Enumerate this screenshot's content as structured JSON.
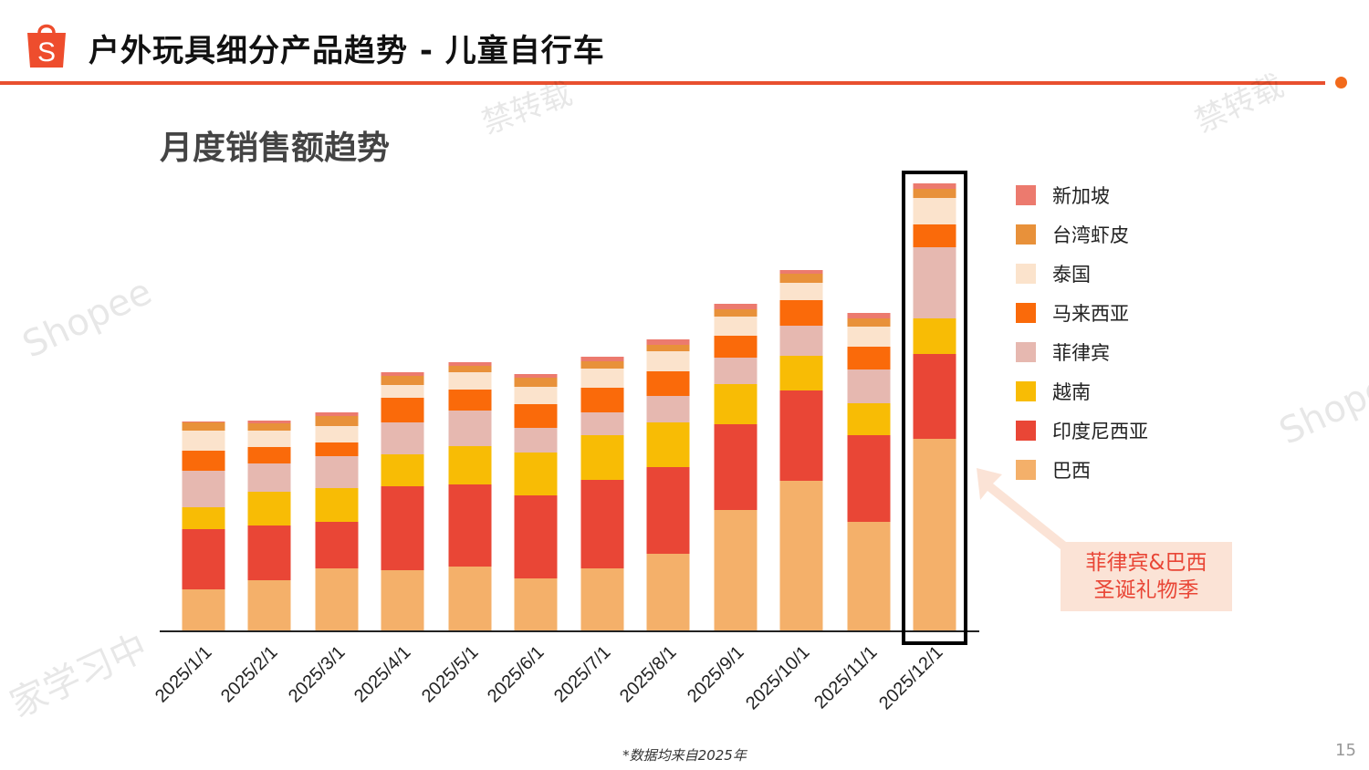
{
  "header": {
    "title": "户外玩具细分产品趋势 - 儿童自行车",
    "logo_letter": "S",
    "accent_color": "#e8502f"
  },
  "subtitle": "月度销售额趋势",
  "annotation": {
    "line1": "菲律宾&巴西",
    "line2": "圣诞礼物季"
  },
  "footnote": "*数据均来自2025年",
  "page_number": "15",
  "watermarks": [
    "Shopee",
    "Shopee",
    "家学习中",
    "禁转载",
    "禁转载"
  ],
  "chart_data": {
    "type": "bar",
    "stacked": true,
    "title": "月度销售额趋势",
    "xlabel": "",
    "ylabel": "",
    "y_axis_shown": false,
    "value_note": "relative",
    "grid": false,
    "legend_position": "right",
    "highlighted_category": "2025/12/1",
    "categories": [
      "2025/1/1",
      "2025/2/1",
      "2025/3/1",
      "2025/4/1",
      "2025/5/1",
      "2025/6/1",
      "2025/7/1",
      "2025/8/1",
      "2025/9/1",
      "2025/10/1",
      "2025/11/1",
      "2025/12/1"
    ],
    "series": [
      {
        "name": "新加坡",
        "color": "#ec7a6e",
        "values": [
          1,
          3,
          4,
          4,
          4,
          4,
          5,
          6,
          6,
          4,
          6,
          6
        ]
      },
      {
        "name": "台湾虾皮",
        "color": "#e8913a",
        "values": [
          9,
          8,
          11,
          10,
          7,
          10,
          8,
          7,
          8,
          10,
          9,
          10
        ]
      },
      {
        "name": "泰国",
        "color": "#fbe3cc",
        "values": [
          22,
          18,
          18,
          14,
          19,
          19,
          21,
          22,
          21,
          19,
          22,
          29
        ]
      },
      {
        "name": "马来西亚",
        "color": "#fa6a0a",
        "values": [
          22,
          18,
          15,
          27,
          23,
          26,
          27,
          27,
          24,
          28,
          25,
          25
        ]
      },
      {
        "name": "菲律宾",
        "color": "#e6b8b0",
        "values": [
          40,
          31,
          35,
          35,
          39,
          27,
          25,
          29,
          29,
          33,
          37,
          78
        ]
      },
      {
        "name": "越南",
        "color": "#f8bc05",
        "values": [
          24,
          37,
          37,
          35,
          42,
          47,
          49,
          49,
          44,
          38,
          35,
          39
        ]
      },
      {
        "name": "印度尼西亚",
        "color": "#e94636",
        "values": [
          66,
          60,
          51,
          92,
          90,
          91,
          97,
          95,
          94,
          99,
          95,
          93
        ]
      },
      {
        "name": "巴西",
        "color": "#f4b06a",
        "values": [
          46,
          56,
          69,
          67,
          71,
          58,
          69,
          85,
          133,
          165,
          120,
          211
        ]
      }
    ]
  }
}
